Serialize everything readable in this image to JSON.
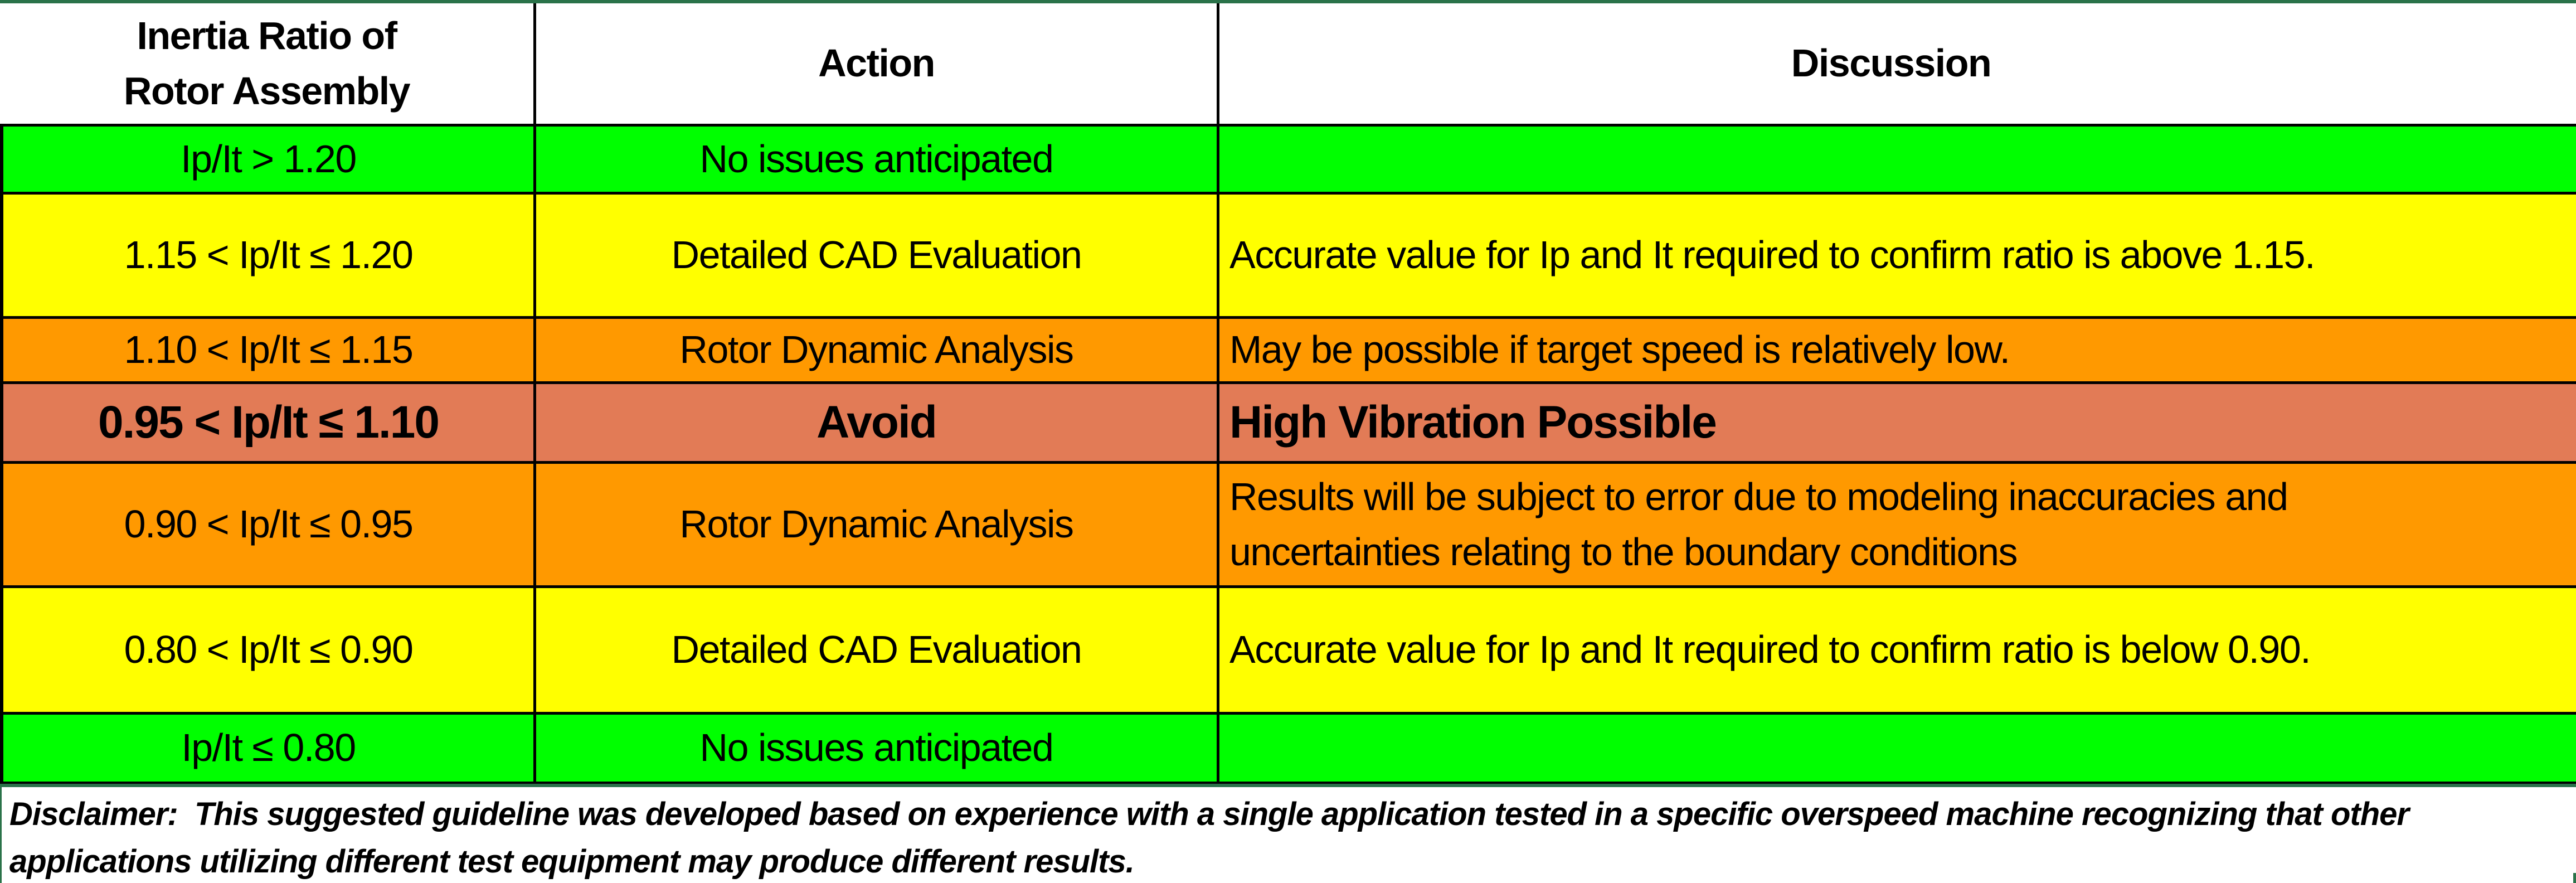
{
  "colors": {
    "row_green": "#00FF00",
    "row_yellow": "#FFFF00",
    "row_orange": "#FF9900",
    "row_salmon": "#E27B56",
    "border_dark_green": "#2A7249",
    "border_black": "#000000",
    "header_background": "#FFFFFF",
    "text": "#000000"
  },
  "table": {
    "columns": [
      "Inertia Ratio of\nRotor Assembly",
      "Action",
      "Discussion"
    ],
    "rows": [
      {
        "ratio": "Ip/It > 1.20",
        "action": "No issues anticipated",
        "discussion": "",
        "color": "#00FF00",
        "emphasis": false
      },
      {
        "ratio": "1.15 < Ip/It ≤ 1.20",
        "action": "Detailed CAD Evaluation",
        "discussion": "Accurate value for Ip and It required to confirm ratio is above 1.15.",
        "color": "#FFFF00",
        "emphasis": false
      },
      {
        "ratio": "1.10 < Ip/It ≤ 1.15",
        "action": "Rotor Dynamic Analysis",
        "discussion": "May be possible if target speed is relatively low.",
        "color": "#FF9900",
        "emphasis": false
      },
      {
        "ratio": "0.95 < Ip/It ≤ 1.10",
        "action": "Avoid",
        "discussion": "High Vibration Possible",
        "color": "#E27B56",
        "emphasis": true
      },
      {
        "ratio": "0.90 < Ip/It ≤ 0.95",
        "action": "Rotor Dynamic Analysis",
        "discussion": "Results will be subject to error due to modeling inaccuracies and\nuncertainties relating to the boundary conditions",
        "color": "#FF9900",
        "emphasis": false
      },
      {
        "ratio": "0.80 < Ip/It ≤ 0.90",
        "action": "Detailed CAD Evaluation",
        "discussion": "Accurate value for Ip and It required to confirm ratio is below 0.90.",
        "color": "#FFFF00",
        "emphasis": false
      },
      {
        "ratio": "Ip/It ≤ 0.80",
        "action": "No issues anticipated",
        "discussion": "",
        "color": "#00FF00",
        "emphasis": false
      }
    ]
  },
  "disclaimer": "Disclaimer:  This suggested guideline was developed based on experience with a single application tested in a specific overspeed machine recognizing that other\napplications utilizing different test equipment may produce different results."
}
